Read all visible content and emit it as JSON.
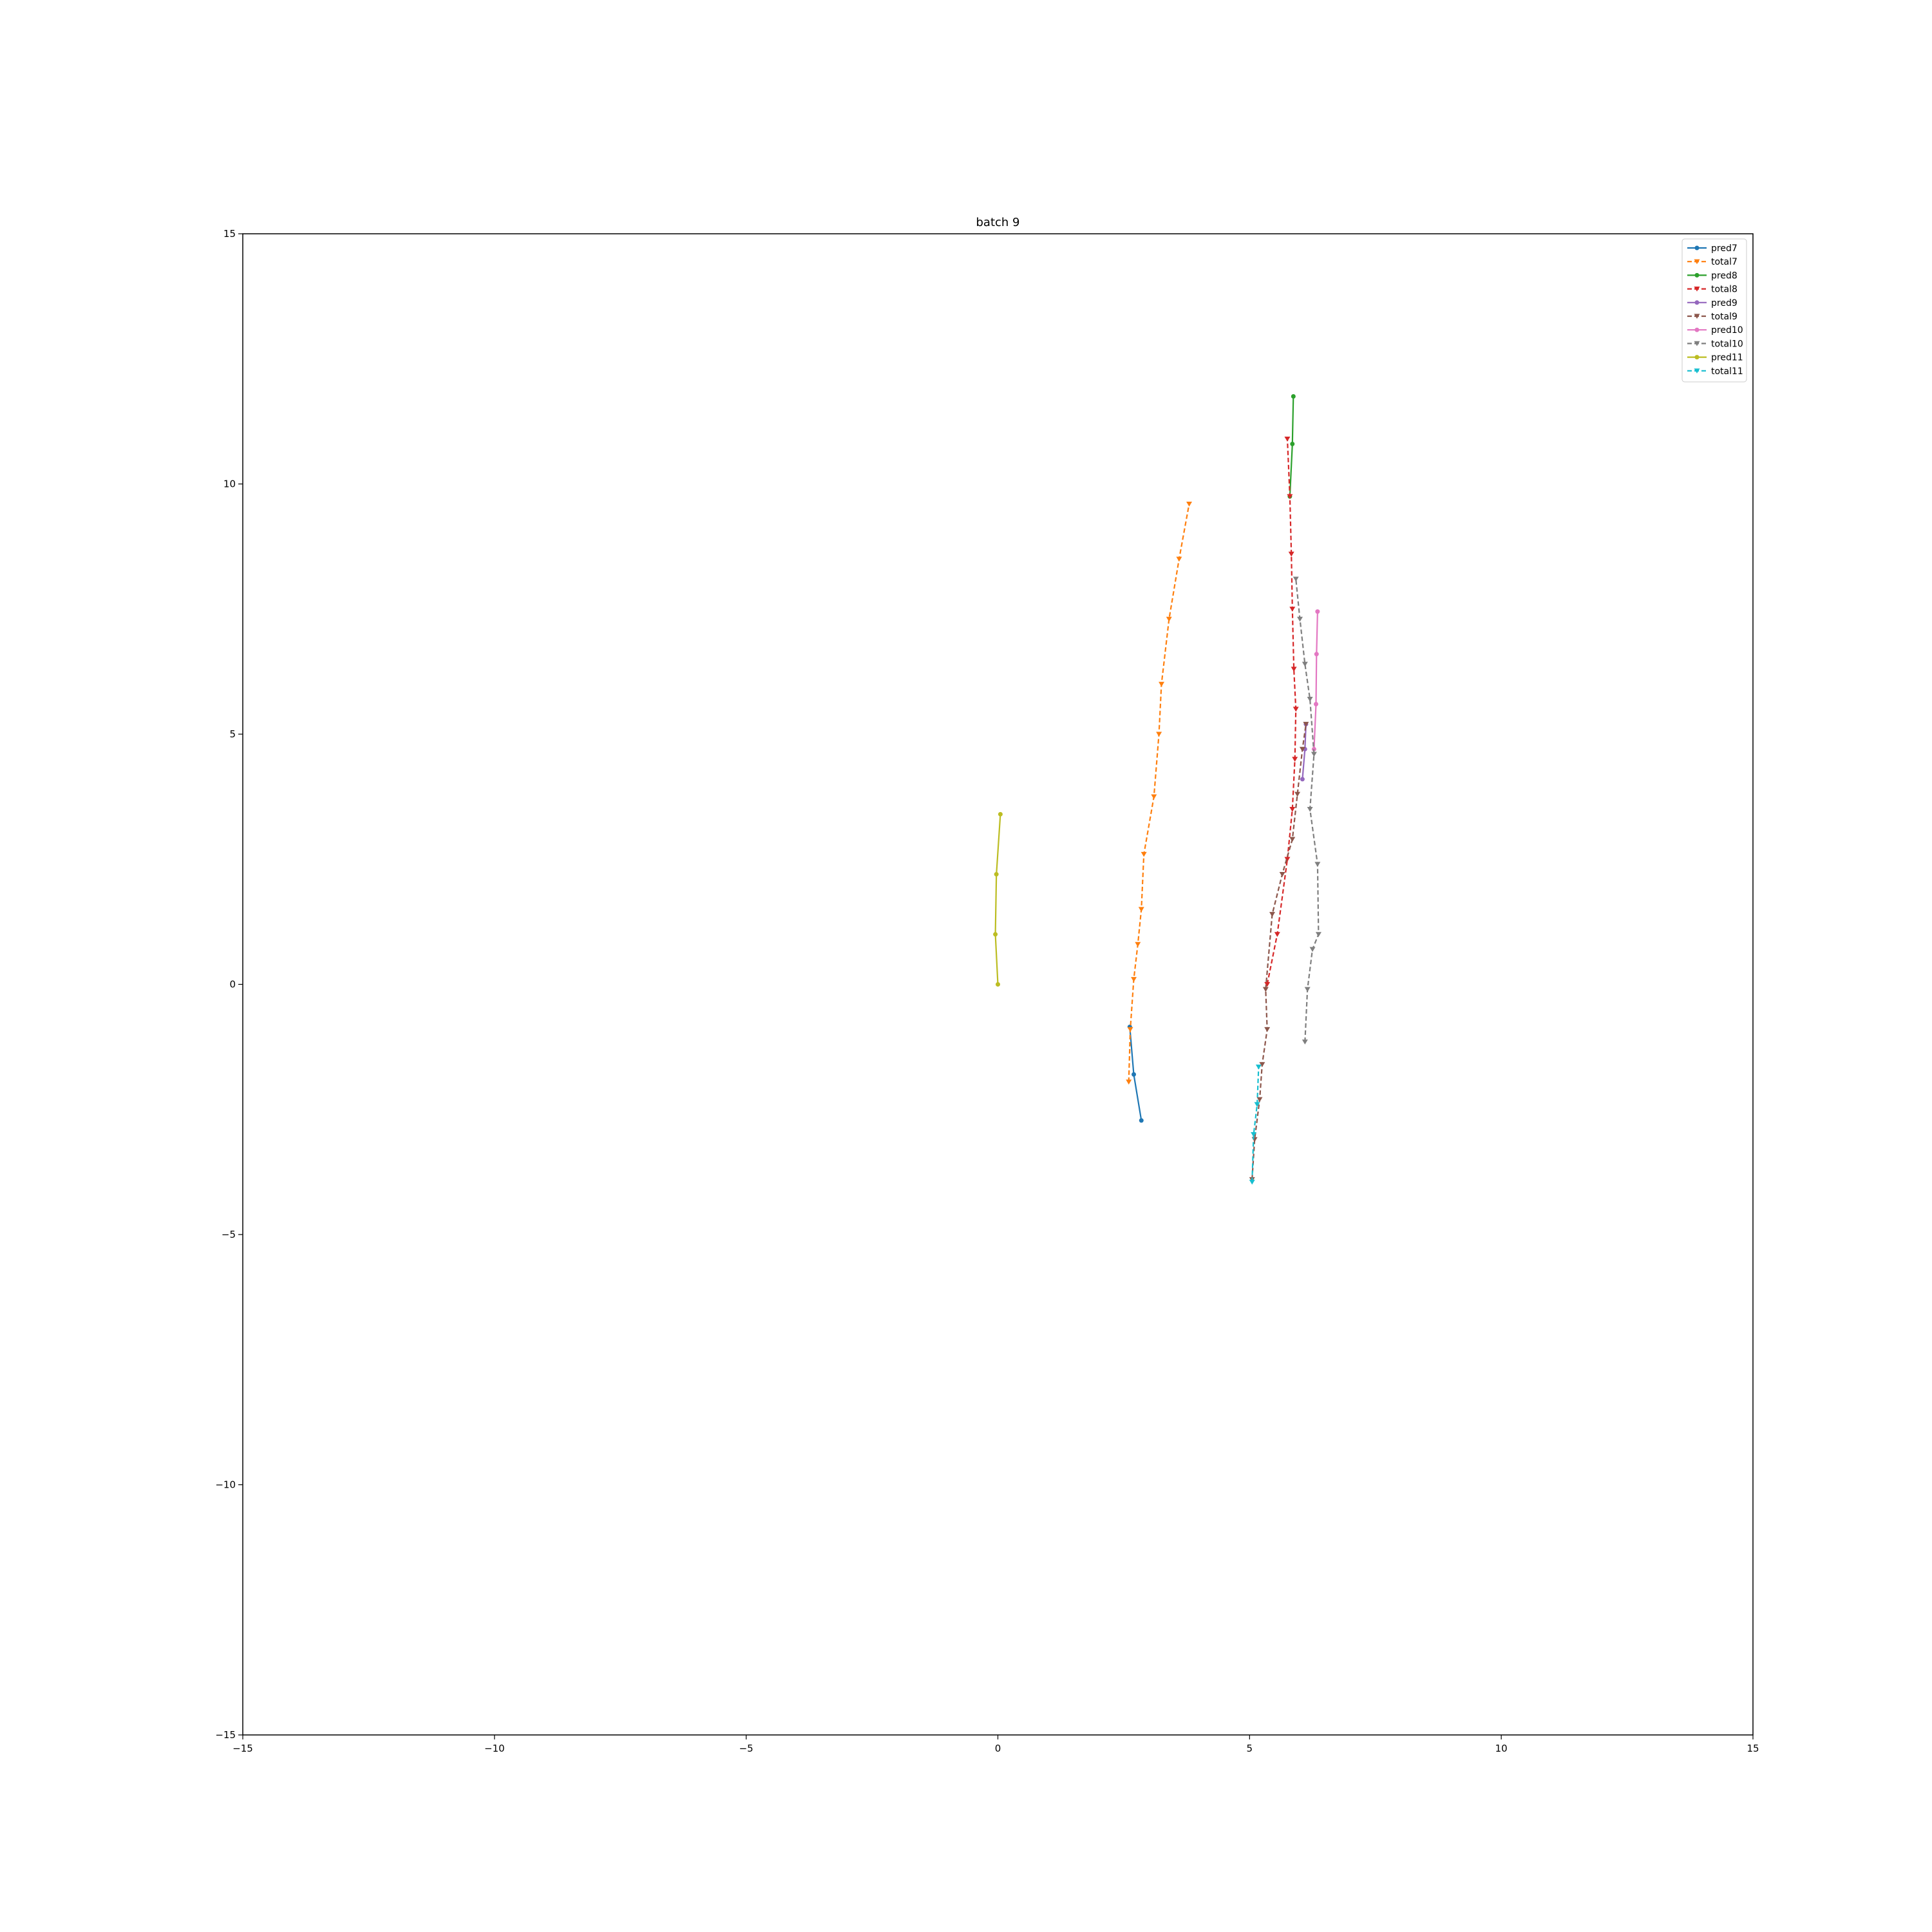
{
  "chart_data": {
    "type": "line",
    "title": "batch 9",
    "xlabel": "",
    "ylabel": "",
    "xlim": [
      -15,
      15
    ],
    "ylim": [
      -15,
      15
    ],
    "x_ticks": [
      -15,
      -10,
      -5,
      0,
      5,
      10,
      15
    ],
    "y_ticks": [
      -15,
      -10,
      -5,
      0,
      5,
      10,
      15
    ],
    "x_tick_labels": [
      "−15",
      "−10",
      "−5",
      "0",
      "5",
      "10",
      "15"
    ],
    "y_tick_labels": [
      "−15",
      "−10",
      "−5",
      "0",
      "5",
      "10",
      "15"
    ],
    "grid": false,
    "legend_position": "top-right",
    "series": [
      {
        "name": "pred7",
        "color": "#1f77b4",
        "style": "solid",
        "marker": "dot",
        "points": [
          [
            2.62,
            -0.85
          ],
          [
            2.7,
            -1.8
          ],
          [
            2.85,
            -2.72
          ]
        ]
      },
      {
        "name": "total7",
        "color": "#ff7f0e",
        "style": "dashed",
        "marker": "triangle-down",
        "points": [
          [
            2.6,
            -1.95
          ],
          [
            2.63,
            -0.9
          ],
          [
            2.7,
            0.1
          ],
          [
            2.78,
            0.8
          ],
          [
            2.85,
            1.5
          ],
          [
            2.9,
            2.6
          ],
          [
            3.1,
            3.75
          ],
          [
            3.2,
            5.0
          ],
          [
            3.25,
            6.0
          ],
          [
            3.4,
            7.3
          ],
          [
            3.6,
            8.5
          ],
          [
            3.8,
            9.6
          ]
        ]
      },
      {
        "name": "pred8",
        "color": "#2ca02c",
        "style": "solid",
        "marker": "dot",
        "points": [
          [
            5.8,
            9.75
          ],
          [
            5.85,
            10.8
          ],
          [
            5.87,
            11.75
          ]
        ]
      },
      {
        "name": "total8",
        "color": "#d62728",
        "style": "dashed",
        "marker": "triangle-down",
        "points": [
          [
            5.35,
            0.0
          ],
          [
            5.55,
            1.0
          ],
          [
            5.75,
            2.5
          ],
          [
            5.85,
            3.5
          ],
          [
            5.9,
            4.5
          ],
          [
            5.92,
            5.5
          ],
          [
            5.88,
            6.3
          ],
          [
            5.85,
            7.5
          ],
          [
            5.83,
            8.6
          ],
          [
            5.8,
            9.75
          ],
          [
            5.75,
            10.9
          ]
        ]
      },
      {
        "name": "pred9",
        "color": "#9467bd",
        "style": "solid",
        "marker": "dot",
        "points": [
          [
            6.12,
            5.2
          ],
          [
            6.1,
            4.7
          ],
          [
            6.05,
            4.1
          ]
        ]
      },
      {
        "name": "total9",
        "color": "#8c564b",
        "style": "dashed",
        "marker": "triangle-down",
        "points": [
          [
            5.05,
            -3.9
          ],
          [
            5.1,
            -3.1
          ],
          [
            5.2,
            -2.3
          ],
          [
            5.25,
            -1.6
          ],
          [
            5.35,
            -0.9
          ],
          [
            5.32,
            -0.1
          ],
          [
            5.45,
            1.4
          ],
          [
            5.65,
            2.2
          ],
          [
            5.85,
            2.9
          ],
          [
            5.95,
            3.8
          ],
          [
            6.05,
            4.7
          ],
          [
            6.12,
            5.2
          ]
        ]
      },
      {
        "name": "pred10",
        "color": "#e377c2",
        "style": "solid",
        "marker": "dot",
        "points": [
          [
            6.28,
            4.7
          ],
          [
            6.32,
            5.6
          ],
          [
            6.33,
            6.6
          ],
          [
            6.35,
            7.45
          ]
        ]
      },
      {
        "name": "total10",
        "color": "#7f7f7f",
        "style": "dashed",
        "marker": "triangle-down",
        "points": [
          [
            6.1,
            -1.15
          ],
          [
            6.15,
            -0.1
          ],
          [
            6.25,
            0.7
          ],
          [
            6.37,
            1.0
          ],
          [
            6.35,
            2.4
          ],
          [
            6.2,
            3.5
          ],
          [
            6.28,
            4.6
          ],
          [
            6.2,
            5.7
          ],
          [
            6.1,
            6.4
          ],
          [
            6.0,
            7.3
          ],
          [
            5.92,
            8.1
          ]
        ]
      },
      {
        "name": "pred11",
        "color": "#bcbd22",
        "style": "solid",
        "marker": "dot",
        "points": [
          [
            0.0,
            0.0
          ],
          [
            -0.05,
            1.0
          ],
          [
            -0.03,
            2.2
          ],
          [
            0.05,
            3.4
          ]
        ]
      },
      {
        "name": "total11",
        "color": "#17becf",
        "style": "dashed",
        "marker": "triangle-down",
        "points": [
          [
            5.05,
            -3.95
          ],
          [
            5.08,
            -3.0
          ],
          [
            5.15,
            -2.4
          ],
          [
            5.18,
            -1.65
          ]
        ]
      }
    ]
  }
}
